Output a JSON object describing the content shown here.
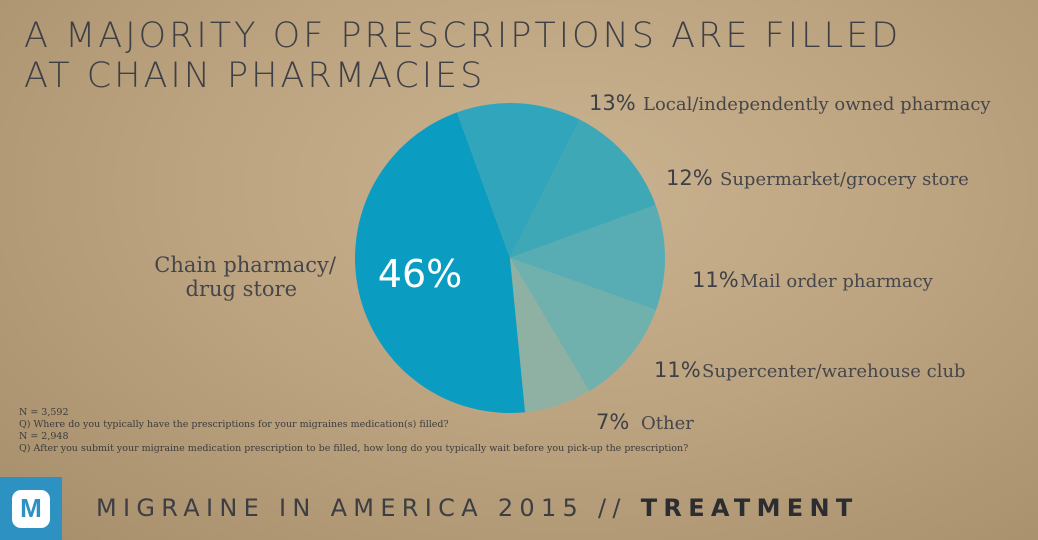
{
  "title": {
    "line1": "A MAJORITY OF PRESCRIPTIONS ARE FILLED",
    "line2": "AT CHAIN PHARMACIES"
  },
  "chart_data": {
    "type": "pie",
    "slices": [
      {
        "label_lines": [
          "Chain pharmacy/",
          "drug store"
        ],
        "pct_text": "46%",
        "value": 46,
        "color": "#0b9cc2"
      },
      {
        "label": "Local/independently owned pharmacy",
        "pct_text": "13%",
        "value": 13,
        "color": "#31a5bb"
      },
      {
        "label": "Supermarket/grocery store",
        "pct_text": "12%",
        "value": 12,
        "color": "#3fa8b7"
      },
      {
        "label": "Mail order pharmacy",
        "pct_text": "11%",
        "value": 11,
        "color": "#57adb3"
      },
      {
        "label": "Supercenter/warehouse club",
        "pct_text": "11%",
        "value": 11,
        "color": "#70b1ad"
      },
      {
        "label": "Other",
        "pct_text": "7%",
        "value": 7,
        "color": "#8fb1a3"
      }
    ]
  },
  "notes": [
    "N = 3,592",
    "Q) Where do you typically have the prescriptions for your migraines medication(s) filled?",
    "N = 2,948",
    "Q) After you submit your migraine medication prescription to be filled, how long do you typically wait before you pick-up the prescription?"
  ],
  "footer": {
    "series": "MIGRAINE IN AMERICA 2015 //",
    "section": "TREATMENT"
  },
  "logo": {
    "letter": "M"
  }
}
